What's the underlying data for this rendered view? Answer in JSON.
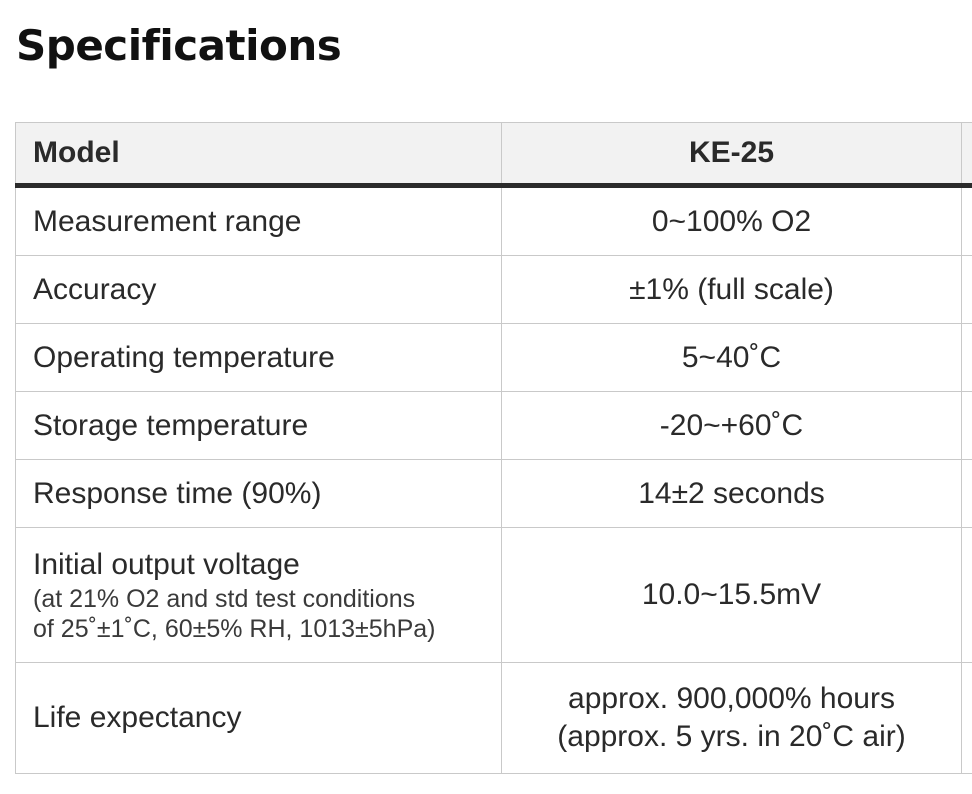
{
  "page": {
    "title": "Specifications"
  },
  "table": {
    "header": {
      "label": "Model",
      "model": "KE-25"
    },
    "rows": [
      {
        "label": "Measurement range",
        "value": "0~100% O2"
      },
      {
        "label": "Accuracy",
        "value": "±1% (full scale)"
      },
      {
        "label": "Operating temperature",
        "value": "5~40˚C"
      },
      {
        "label": "Storage temperature",
        "value": "-20~+60˚C"
      },
      {
        "label": "Response time (90%)",
        "value": "14±2 seconds"
      },
      {
        "label": "Initial output voltage",
        "note_line1": "(at 21% O2 and std test conditions",
        "note_line2": "of 25˚±1˚C, 60±5% RH, 1013±5hPa)",
        "value": "10.0~15.5mV"
      },
      {
        "label": "Life expectancy",
        "value_line1": "approx. 900,000% hours",
        "value_line2": "(approx. 5 yrs. in 20˚C air)"
      }
    ]
  }
}
